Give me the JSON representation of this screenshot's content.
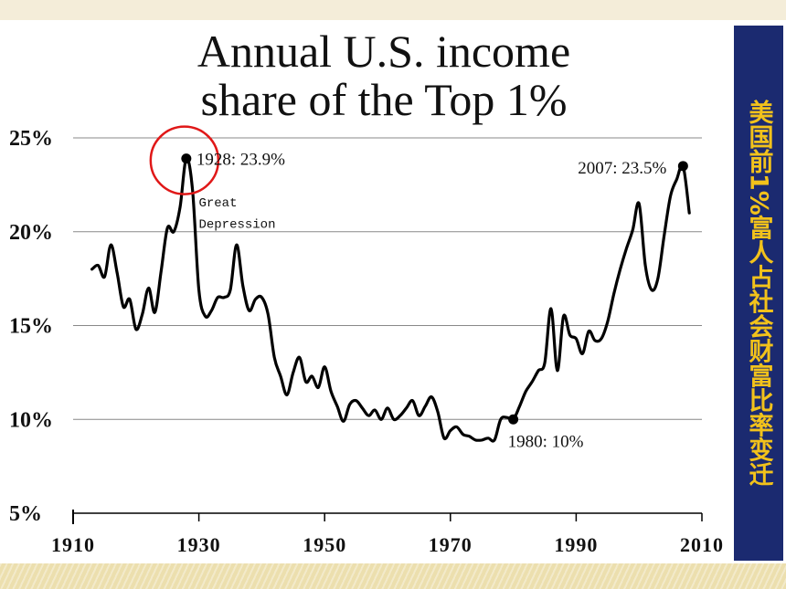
{
  "side_label": "美国前1%富人占社会财富比率变迁",
  "colors": {
    "side_panel": "#1b2a70",
    "side_text": "#f2c21b",
    "highlight_circle": "#e01818",
    "line": "#000000",
    "grid": "#888888"
  },
  "chart_data": {
    "type": "line",
    "title_lines": [
      "Annual U.S. income",
      "share of the Top 1%"
    ],
    "xlim": [
      1910,
      2010
    ],
    "ylim": [
      5,
      25
    ],
    "x_ticks": [
      "1910",
      "1930",
      "1950",
      "1970",
      "1990",
      "2010"
    ],
    "x_tick_values": [
      1910,
      1930,
      1950,
      1970,
      1990,
      2010
    ],
    "y_ticks": [
      "5%",
      "10%",
      "15%",
      "20%",
      "25%"
    ],
    "y_tick_values": [
      5,
      10,
      15,
      20,
      25
    ],
    "grid": "horizontal",
    "series": [
      {
        "x": [
          1913,
          1914,
          1915,
          1916,
          1917,
          1918,
          1919,
          1920,
          1921,
          1922,
          1923,
          1924,
          1925,
          1926,
          1927,
          1928,
          1929,
          1930,
          1931,
          1932,
          1933,
          1934,
          1935,
          1936,
          1937,
          1938,
          1939,
          1940,
          1941,
          1942,
          1943,
          1944,
          1945,
          1946,
          1947,
          1948,
          1949,
          1950,
          1951,
          1952,
          1953,
          1954,
          1955,
          1956,
          1957,
          1958,
          1959,
          1960,
          1961,
          1962,
          1963,
          1964,
          1965,
          1966,
          1967,
          1968,
          1969,
          1970,
          1971,
          1972,
          1973,
          1974,
          1975,
          1976,
          1977,
          1978,
          1979,
          1980,
          1981,
          1982,
          1983,
          1984,
          1985,
          1986,
          1987,
          1988,
          1989,
          1990,
          1991,
          1992,
          1993,
          1994,
          1995,
          1996,
          1997,
          1998,
          1999,
          2000,
          2001,
          2002,
          2003,
          2004,
          2005,
          2006,
          2007,
          2008
        ],
        "values": [
          18.0,
          18.2,
          17.6,
          19.3,
          17.8,
          16.0,
          16.4,
          14.8,
          15.6,
          17.0,
          15.7,
          17.9,
          20.2,
          20.0,
          21.3,
          23.9,
          22.2,
          16.9,
          15.5,
          15.8,
          16.5,
          16.5,
          16.9,
          19.3,
          17.1,
          15.8,
          16.4,
          16.5,
          15.6,
          13.3,
          12.3,
          11.3,
          12.5,
          13.3,
          12.0,
          12.3,
          11.7,
          12.8,
          11.5,
          10.7,
          9.9,
          10.8,
          11.0,
          10.6,
          10.2,
          10.5,
          10.0,
          10.6,
          10.0,
          10.2,
          10.6,
          11.0,
          10.2,
          10.7,
          11.2,
          10.4,
          9.0,
          9.4,
          9.6,
          9.2,
          9.1,
          8.9,
          8.9,
          9.0,
          8.9,
          10.0,
          10.1,
          10.0,
          10.7,
          11.5,
          12.0,
          12.6,
          13.0,
          15.9,
          12.6,
          15.5,
          14.5,
          14.3,
          13.5,
          14.7,
          14.2,
          14.3,
          15.2,
          16.7,
          18.0,
          19.1,
          20.1,
          21.5,
          18.2,
          16.9,
          17.5,
          19.8,
          21.9,
          22.8,
          23.5,
          21.0
        ]
      }
    ],
    "annotations": [
      {
        "text": "1928: 23.9%",
        "x": 1928,
        "y": 23.9
      },
      {
        "text": "Great",
        "x": 1931,
        "y": 21.6
      },
      {
        "text": "Depression",
        "x": 1931,
        "y": 20.7
      },
      {
        "text": "2007: 23.5%",
        "x": 2007,
        "y": 23.5
      },
      {
        "text": "1980: 10%",
        "x": 1980,
        "y": 10.0
      }
    ],
    "markers": [
      {
        "x": 1928,
        "y": 23.9
      },
      {
        "x": 2007,
        "y": 23.5
      },
      {
        "x": 1980,
        "y": 10.0
      }
    ],
    "highlight": {
      "x": 1928,
      "y": 23.9
    }
  }
}
